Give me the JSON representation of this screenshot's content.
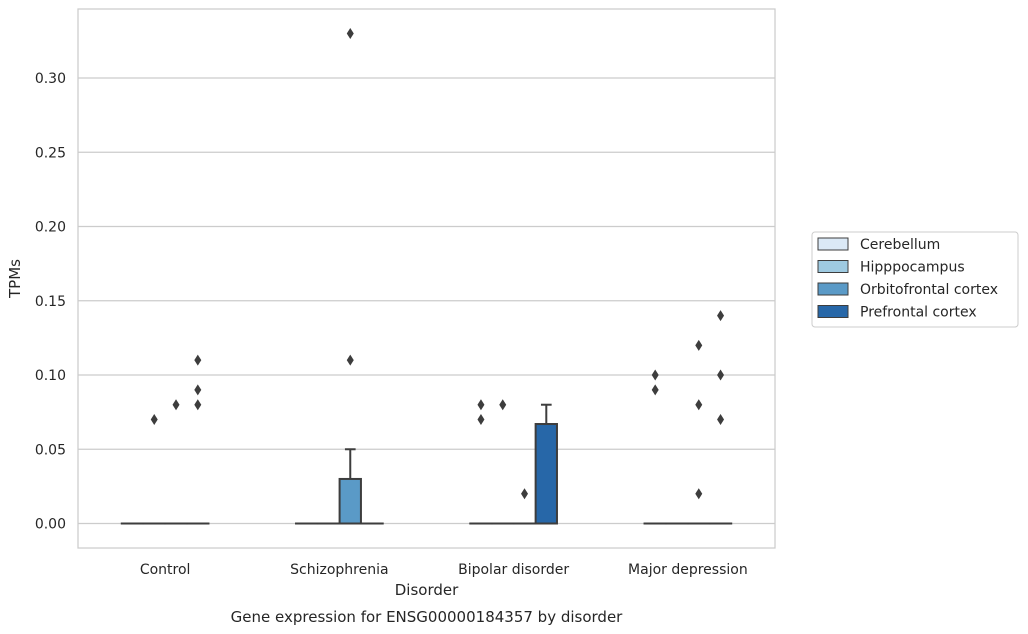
{
  "chart_data": {
    "type": "box",
    "xlabel": "Disorder",
    "ylabel": "TPMs",
    "caption": "Gene expression for ENSG00000184357 by disorder",
    "ylim": [
      -0.0165,
      0.3465
    ],
    "yticks": [
      "0.00",
      "0.05",
      "0.10",
      "0.15",
      "0.20",
      "0.25",
      "0.30"
    ],
    "yticks_values": [
      0,
      0.05,
      0.1,
      0.15,
      0.2,
      0.25,
      0.3
    ],
    "grid": true,
    "legend_placement": "right-center",
    "categories": [
      "Control",
      "Schizophrenia",
      "Bipolar disorder",
      "Major depression"
    ],
    "series": [
      {
        "name": "Cerebellum",
        "color": "#dbe9f6",
        "boxes": [
          {
            "q1": 0,
            "median": 0,
            "q3": 0,
            "whisker_low": 0,
            "whisker_high": 0,
            "outliers": []
          },
          {
            "q1": 0,
            "median": 0,
            "q3": 0,
            "whisker_low": 0,
            "whisker_high": 0,
            "outliers": []
          },
          {
            "q1": 0,
            "median": 0,
            "q3": 0,
            "whisker_low": 0,
            "whisker_high": 0,
            "outliers": [
              0.07,
              0.08
            ]
          },
          {
            "q1": 0,
            "median": 0,
            "q3": 0,
            "whisker_low": 0,
            "whisker_high": 0,
            "outliers": [
              0.09,
              0.1
            ]
          }
        ]
      },
      {
        "name": "Hipppocampus",
        "color": "#9ecae1",
        "boxes": [
          {
            "q1": 0,
            "median": 0,
            "q3": 0,
            "whisker_low": 0,
            "whisker_high": 0,
            "outliers": [
              0.07
            ]
          },
          {
            "q1": 0,
            "median": 0,
            "q3": 0,
            "whisker_low": 0,
            "whisker_high": 0,
            "outliers": []
          },
          {
            "q1": 0,
            "median": 0,
            "q3": 0,
            "whisker_low": 0,
            "whisker_high": 0,
            "outliers": [
              0.08
            ]
          },
          {
            "q1": 0,
            "median": 0,
            "q3": 0,
            "whisker_low": 0,
            "whisker_high": 0,
            "outliers": []
          }
        ]
      },
      {
        "name": "Orbitofrontal cortex",
        "color": "#5a9ac7",
        "boxes": [
          {
            "q1": 0,
            "median": 0,
            "q3": 0,
            "whisker_low": 0,
            "whisker_high": 0,
            "outliers": [
              0.08
            ]
          },
          {
            "q1": 0,
            "median": 0,
            "q3": 0.03,
            "whisker_low": 0,
            "whisker_high": 0.05,
            "outliers": [
              0.11,
              0.33
            ]
          },
          {
            "q1": 0,
            "median": 0,
            "q3": 0,
            "whisker_low": 0,
            "whisker_high": 0,
            "outliers": [
              0.02
            ]
          },
          {
            "q1": 0,
            "median": 0,
            "q3": 0,
            "whisker_low": 0,
            "whisker_high": 0,
            "outliers": [
              0.02,
              0.08,
              0.12
            ]
          }
        ]
      },
      {
        "name": "Prefrontal cortex",
        "color": "#2767a8",
        "boxes": [
          {
            "q1": 0,
            "median": 0,
            "q3": 0,
            "whisker_low": 0,
            "whisker_high": 0,
            "outliers": [
              0.08,
              0.09,
              0.11
            ]
          },
          {
            "q1": 0,
            "median": 0,
            "q3": 0,
            "whisker_low": 0,
            "whisker_high": 0,
            "outliers": []
          },
          {
            "q1": 0,
            "median": 0,
            "q3": 0.067,
            "whisker_low": 0,
            "whisker_high": 0.08,
            "outliers": []
          },
          {
            "q1": 0,
            "median": 0,
            "q3": 0,
            "whisker_low": 0,
            "whisker_high": 0,
            "outliers": [
              0.07,
              0.1,
              0.14
            ]
          }
        ]
      }
    ]
  }
}
